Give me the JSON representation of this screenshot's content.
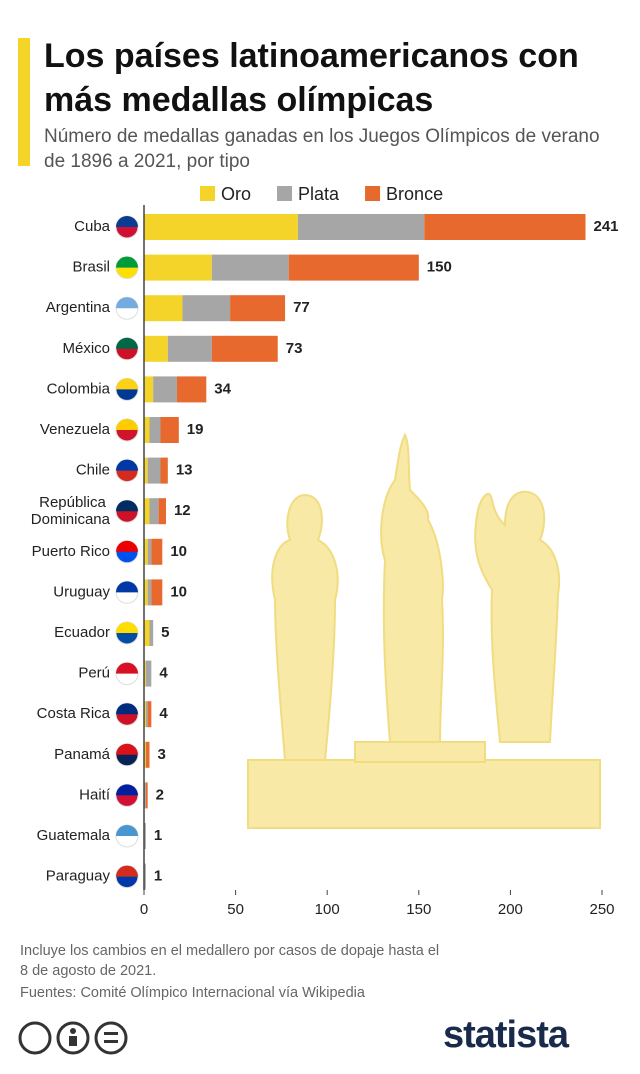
{
  "chart_data": {
    "type": "stacked-bar-horizontal",
    "title": "Los países latinoamericanos con más medallas olímpicas",
    "subtitle": "Número de medallas ganadas en los Juegos Olímpicos de verano de 1896 a 2021, por tipo",
    "categories": [
      "Cuba",
      "Brasil",
      "Argentina",
      "México",
      "Colombia",
      "Venezuela",
      "Chile",
      "República Dominicana",
      "Puerto Rico",
      "Uruguay",
      "Ecuador",
      "Perú",
      "Costa Rica",
      "Panamá",
      "Haití",
      "Guatemala",
      "Paraguay"
    ],
    "series": [
      {
        "name": "Oro",
        "color": "#f5d42a",
        "values": [
          84,
          37,
          21,
          13,
          5,
          3,
          2,
          3,
          2,
          2,
          3,
          1,
          1,
          1,
          0,
          0,
          0
        ]
      },
      {
        "name": "Plata",
        "color": "#a6a6a6",
        "values": [
          69,
          42,
          26,
          24,
          13,
          6,
          7,
          5,
          2,
          2,
          2,
          3,
          1,
          0,
          1,
          1,
          1
        ]
      },
      {
        "name": "Bronce",
        "color": "#e8692e",
        "values": [
          88,
          71,
          30,
          36,
          16,
          10,
          4,
          4,
          6,
          6,
          0,
          0,
          2,
          2,
          1,
          0,
          0
        ]
      }
    ],
    "totals": [
      241,
      150,
      77,
      73,
      34,
      19,
      13,
      12,
      10,
      10,
      5,
      4,
      4,
      3,
      2,
      1,
      1
    ],
    "xlim": [
      0,
      250
    ],
    "xticks": [
      0,
      50,
      100,
      150,
      200,
      250
    ],
    "grid": false,
    "legend": "top",
    "note": "Incluye los cambios en el medallero por casos de dopaje hasta el 8 de agosto de 2021.",
    "source": "Fuentes: Comité Olímpico Internacional vía Wikipedia",
    "brand": "statista"
  }
}
